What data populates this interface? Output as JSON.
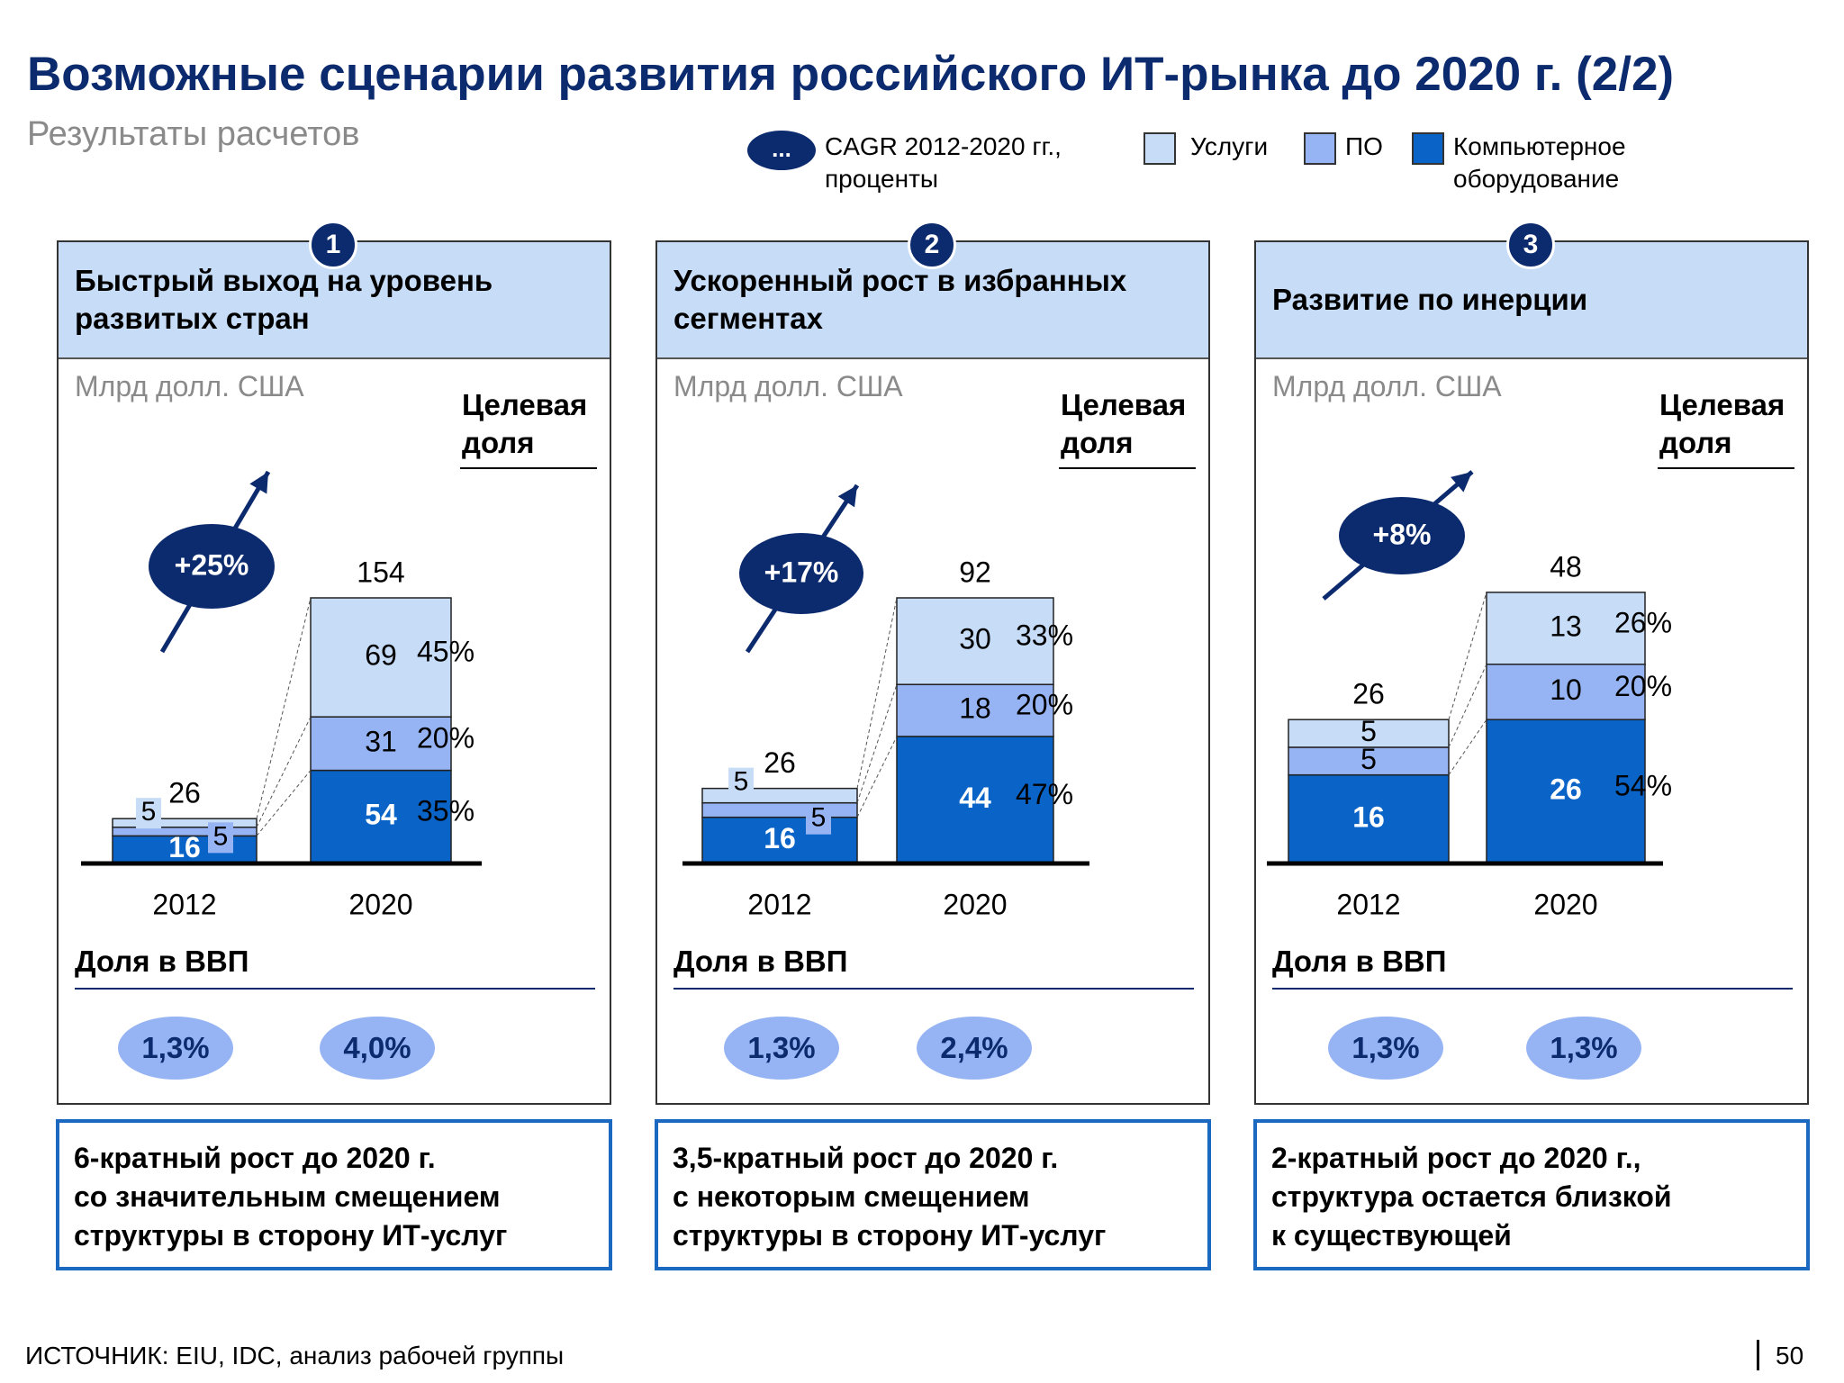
{
  "title": "Возможные сценарии развития российского ИТ-рынка до 2020 г. (2/2)",
  "subtitle": "Результаты расчетов",
  "legend": {
    "cagr_symbol": "...",
    "cagr_line1": "CAGR 2012-2020 гг.,",
    "cagr_line2": "проценты",
    "services": "Услуги",
    "software": "ПО",
    "hardware_line1": "Компьютерное",
    "hardware_line2": "оборудование"
  },
  "colors": {
    "services": "#c6dcf7",
    "software": "#96b4f4",
    "hardware": "#0a64c8",
    "dark": "#0c2a6e"
  },
  "common": {
    "unit": "Млрд долл. США",
    "target_line1": "Целевая",
    "target_line2": "доля",
    "gdp_label": "Доля в ВВП"
  },
  "panels": [
    {
      "number": "1",
      "header_line1": "Быстрый выход на уровень",
      "header_line2": "развитых стран",
      "gdp_2012": "1,3%",
      "gdp_2020": "4,0%",
      "conclusion_line1": "6-кратный рост до 2020 г.",
      "conclusion_line2": "со значительным смещением",
      "conclusion_line3": "структуры в сторону ИТ-услуг"
    },
    {
      "number": "2",
      "header_line1": "Ускоренный рост в избранных",
      "header_line2": "сегментах",
      "gdp_2012": "1,3%",
      "gdp_2020": "2,4%",
      "conclusion_line1": "3,5-кратный рост до 2020 г.",
      "conclusion_line2": "с некоторым смещением",
      "conclusion_line3": "структуры в сторону ИТ-услуг"
    },
    {
      "number": "3",
      "header_line1": "Развитие по инерции",
      "header_line2": "",
      "gdp_2012": "1,3%",
      "gdp_2020": "1,3%",
      "conclusion_line1": "2-кратный рост до 2020 г.,",
      "conclusion_line2": "структура остается близкой",
      "conclusion_line3": "к существующей"
    }
  ],
  "chart_data": [
    {
      "type": "bar",
      "stacked": true,
      "categories": [
        "2012",
        "2020"
      ],
      "series": [
        {
          "name": "Компьютерное оборудование",
          "values": [
            16,
            54
          ]
        },
        {
          "name": "ПО",
          "values": [
            5,
            31
          ]
        },
        {
          "name": "Услуги",
          "values": [
            5,
            69
          ]
        }
      ],
      "totals": [
        26,
        154
      ],
      "cagr": "+25%",
      "target_share": [
        "35%",
        "20%",
        "45%"
      ]
    },
    {
      "type": "bar",
      "stacked": true,
      "categories": [
        "2012",
        "2020"
      ],
      "series": [
        {
          "name": "Компьютерное оборудование",
          "values": [
            16,
            44
          ]
        },
        {
          "name": "ПО",
          "values": [
            5,
            18
          ]
        },
        {
          "name": "Услуги",
          "values": [
            5,
            30
          ]
        }
      ],
      "totals": [
        26,
        92
      ],
      "cagr": "+17%",
      "target_share": [
        "47%",
        "20%",
        "33%"
      ]
    },
    {
      "type": "bar",
      "stacked": true,
      "categories": [
        "2012",
        "2020"
      ],
      "series": [
        {
          "name": "Компьютерное оборудование",
          "values": [
            16,
            26
          ]
        },
        {
          "name": "ПО",
          "values": [
            5,
            10
          ]
        },
        {
          "name": "Услуги",
          "values": [
            5,
            13
          ]
        }
      ],
      "totals": [
        26,
        48
      ],
      "cagr": "+8%",
      "target_share": [
        "54%",
        "20%",
        "26%"
      ]
    }
  ],
  "source": "ИСТОЧНИК: EIU, IDC, анализ рабочей группы",
  "page_number": "50"
}
